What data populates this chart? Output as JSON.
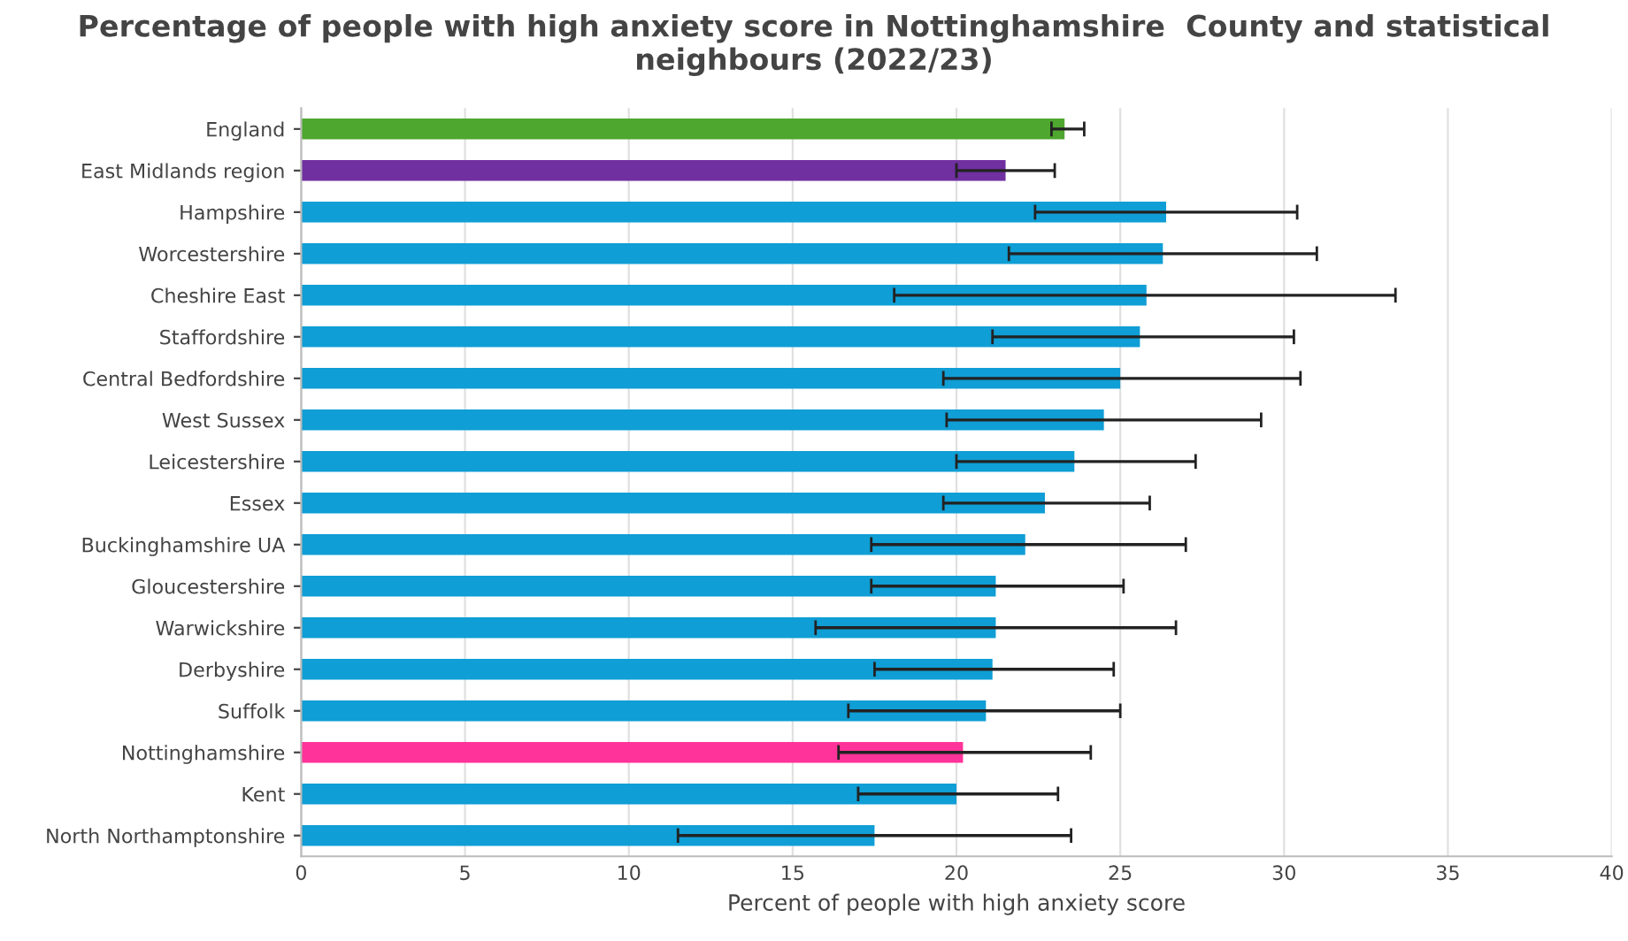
{
  "chart_data": {
    "type": "bar",
    "orientation": "horizontal",
    "title": "Percentage of people with high anxiety score in Nottinghamshire  County and statistical neighbours (2022/23)",
    "xlabel": "Percent of people with high anxiety score",
    "categories": [
      "England",
      "East Midlands region",
      "Hampshire",
      "Worcestershire",
      "Cheshire East",
      "Staffordshire",
      "Central Bedfordshire",
      "West Sussex",
      "Leicestershire",
      "Essex",
      "Buckinghamshire UA",
      "Gloucestershire",
      "Warwickshire",
      "Derbyshire",
      "Suffolk",
      "Nottinghamshire",
      "Kent",
      "North Northamptonshire"
    ],
    "values": [
      23.3,
      21.5,
      26.4,
      26.3,
      25.8,
      25.6,
      25.0,
      24.5,
      23.6,
      22.7,
      22.1,
      21.2,
      21.2,
      21.1,
      20.9,
      20.2,
      20.0,
      17.5
    ],
    "errors": [
      [
        22.9,
        23.9
      ],
      [
        20.0,
        23.0
      ],
      [
        22.4,
        30.4
      ],
      [
        21.6,
        31.0
      ],
      [
        18.1,
        33.4
      ],
      [
        21.1,
        30.3
      ],
      [
        19.6,
        30.5
      ],
      [
        19.7,
        29.3
      ],
      [
        20.0,
        27.3
      ],
      [
        19.6,
        25.9
      ],
      [
        17.4,
        27.0
      ],
      [
        17.4,
        25.1
      ],
      [
        15.7,
        26.7
      ],
      [
        17.5,
        24.8
      ],
      [
        16.7,
        25.0
      ],
      [
        16.4,
        24.1
      ],
      [
        17.0,
        23.1
      ],
      [
        11.5,
        23.5
      ]
    ],
    "colors": [
      "#4ea72e",
      "#7030a0",
      "#0f9ed5",
      "#0f9ed5",
      "#0f9ed5",
      "#0f9ed5",
      "#0f9ed5",
      "#0f9ed5",
      "#0f9ed5",
      "#0f9ed5",
      "#0f9ed5",
      "#0f9ed5",
      "#0f9ed5",
      "#0f9ed5",
      "#0f9ed5",
      "#ff3399",
      "#0f9ed5",
      "#0f9ed5"
    ],
    "xlim": [
      0,
      40
    ],
    "xticks": [
      0,
      5,
      10,
      15,
      20,
      25,
      30,
      35,
      40
    ],
    "grid": "x",
    "legend": false
  }
}
